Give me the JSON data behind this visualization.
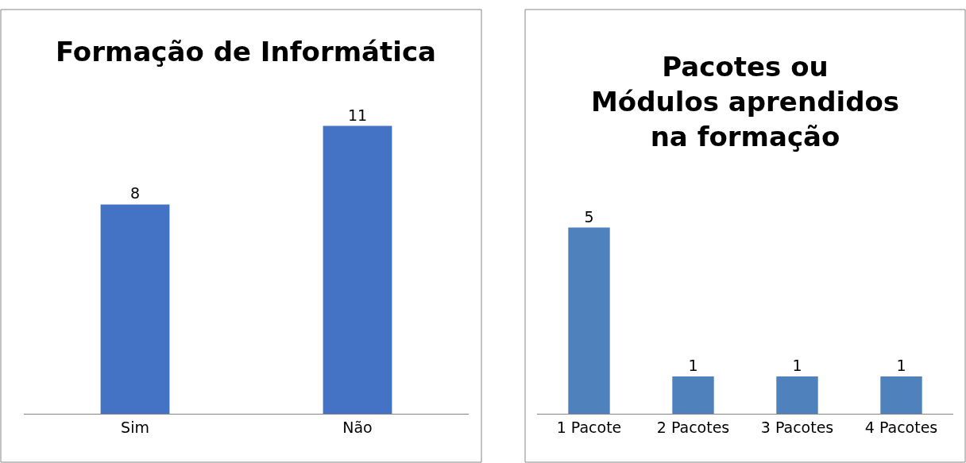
{
  "chart_data": [
    {
      "type": "bar",
      "title": "Formação de Informática",
      "categories": [
        "Sim",
        "Não"
      ],
      "values": [
        8,
        11
      ],
      "color": "#4472c4",
      "data_labels": true
    },
    {
      "type": "bar",
      "title": "Pacotes ou Módulos aprendidos na formação",
      "categories": [
        "1 Pacote",
        "2 Pacotes",
        "3 Pacotes",
        "4 Pacotes"
      ],
      "values": [
        5,
        1,
        1,
        1
      ],
      "color": "#4f81bd",
      "data_labels": true
    }
  ]
}
